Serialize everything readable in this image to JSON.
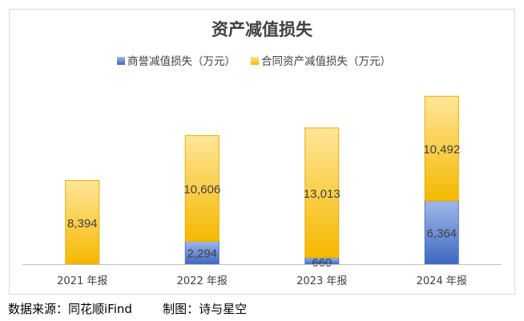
{
  "footer": {
    "source": "数据来源：同花顺iFind",
    "author": "制图：诗与星空"
  },
  "chart_data": {
    "type": "bar",
    "stacked": true,
    "title": "资产减值损失",
    "xlabel": "",
    "ylabel": "",
    "ylim": [
      0,
      18000
    ],
    "grid": false,
    "legend_position": "top",
    "categories": [
      "2021 年报",
      "2022 年报",
      "2023 年报",
      "2024 年报"
    ],
    "series": [
      {
        "name": "商誉减值损失（万元）",
        "values": [
          0,
          2294,
          660,
          6364
        ],
        "labels": [
          "-",
          "2,294",
          "660",
          "6,364"
        ],
        "color": "#4472c4"
      },
      {
        "name": "合同资产减值损失（万元）",
        "values": [
          8394,
          10606,
          13013,
          10492
        ],
        "labels": [
          "8,394",
          "10,606",
          "13,013",
          "10,492"
        ],
        "color": "#ffc000"
      }
    ]
  }
}
